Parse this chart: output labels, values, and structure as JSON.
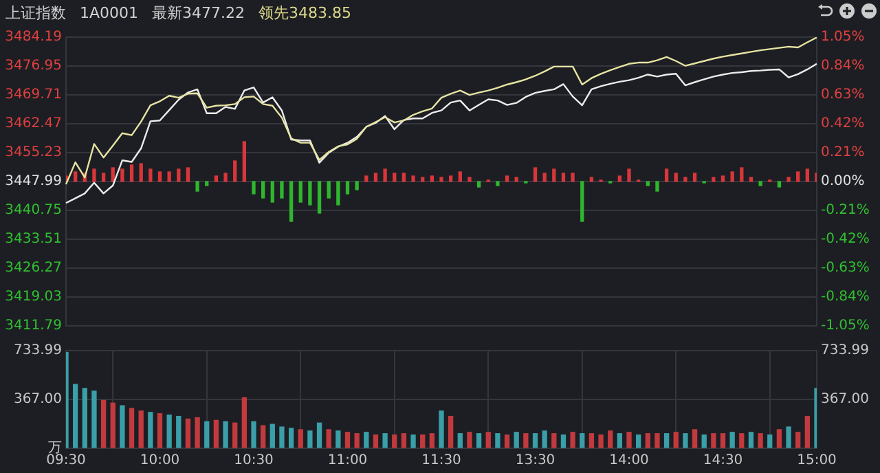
{
  "chart_data": [
    {
      "type": "line",
      "title": "上证指数",
      "annotations": [
        "1A0001",
        "最新3477.22",
        "领先3483.85"
      ],
      "categories": [
        null,
        null,
        null,
        null,
        null,
        null,
        null,
        null,
        null,
        null,
        null,
        null,
        null,
        null,
        null,
        null,
        null,
        null,
        null,
        null,
        null,
        null,
        null,
        null,
        null,
        null,
        null,
        null,
        null,
        null,
        null,
        null,
        null,
        null,
        null,
        null,
        null,
        null,
        null,
        null,
        null,
        null,
        null,
        null,
        null,
        null,
        null,
        null,
        null,
        null,
        null,
        null,
        null,
        null,
        null,
        null,
        null,
        null,
        null,
        null,
        null,
        null,
        null,
        null,
        null,
        null,
        null,
        null,
        null,
        null,
        null,
        null,
        null,
        null,
        null,
        null,
        null,
        null,
        null,
        null,
        null
      ],
      "tick_labels": "y",
      "ylim": [
        3411.79,
        3484.19
      ],
      "yticks": [
        3411.79,
        3419.03,
        3426.27,
        3433.51,
        3440.75,
        3447.99,
        3455.23,
        3462.47,
        3469.71,
        3476.95,
        3484.19
      ],
      "y2lim": [
        -1.05,
        1.05
      ],
      "y2ticks": [
        {
          "value": -1.05,
          "label": "-1.05%"
        },
        {
          "value": -0.84,
          "label": "-0.84%"
        },
        {
          "value": -0.63,
          "label": "-0.63%"
        },
        {
          "value": -0.42,
          "label": "-0.42%"
        },
        {
          "value": -0.21,
          "label": "-0.21%"
        },
        {
          "value": 0,
          "label": "0.00%"
        },
        {
          "value": 0.21,
          "label": "0.21%"
        },
        {
          "value": 0.42,
          "label": "0.42%"
        },
        {
          "value": 0.63,
          "label": "0.63%"
        },
        {
          "value": 0.84,
          "label": "0.84%"
        },
        {
          "value": 1.05,
          "label": "1.05%"
        }
      ],
      "grid": true,
      "series": [
        {
          "type": "bar",
          "axis": "y2",
          "values": [
            0.04,
            0.07,
            0.06,
            0.09,
            0.06,
            0.1,
            0.09,
            0.12,
            0.13,
            0.09,
            0.07,
            0.07,
            0.09,
            0.1,
            -0.07,
            -0.03,
            0.04,
            0.06,
            0.15,
            0.29,
            -0.09,
            -0.12,
            -0.15,
            -0.12,
            -0.29,
            -0.15,
            -0.17,
            -0.23,
            -0.12,
            -0.17,
            -0.09,
            -0.06,
            0.04,
            0.06,
            0.09,
            0.06,
            0.06,
            0.04,
            0.03,
            0.04,
            0.03,
            0.04,
            0.07,
            0.03,
            -0.04,
            0.01,
            -0.03,
            0.04,
            0.03,
            -0.01,
            0.1,
            0.06,
            0.09,
            0.06,
            0.06,
            -0.29,
            0.03,
            0.01,
            -0.01,
            0.04,
            0.09,
            0.01,
            -0.03,
            -0.07,
            0.09,
            0.06,
            0.03,
            0.06,
            -0.01,
            0.03,
            0.04,
            0.07,
            0.1,
            0.03,
            -0.03,
            0.01,
            -0.04,
            0.03,
            0.07,
            0.09,
            0.06
          ],
          "colors": [
            "#d8363a",
            "#d8363a",
            "#d8363a",
            "#d8363a",
            "#d8363a",
            "#d8363a",
            "#d8363a",
            "#d8363a",
            "#d8363a",
            "#d8363a",
            "#d8363a",
            "#d8363a",
            "#d8363a",
            "#d8363a",
            "#2fb62f",
            "#2fb62f",
            "#d8363a",
            "#d8363a",
            "#d8363a",
            "#d8363a",
            "#2fb62f",
            "#2fb62f",
            "#2fb62f",
            "#2fb62f",
            "#2fb62f",
            "#2fb62f",
            "#2fb62f",
            "#2fb62f",
            "#2fb62f",
            "#2fb62f",
            "#2fb62f",
            "#2fb62f",
            "#d8363a",
            "#d8363a",
            "#d8363a",
            "#d8363a",
            "#d8363a",
            "#d8363a",
            "#d8363a",
            "#d8363a",
            "#d8363a",
            "#d8363a",
            "#d8363a",
            "#d8363a",
            "#2fb62f",
            "#d8363a",
            "#2fb62f",
            "#d8363a",
            "#d8363a",
            "#2fb62f",
            "#d8363a",
            "#d8363a",
            "#d8363a",
            "#d8363a",
            "#d8363a",
            "#2fb62f",
            "#d8363a",
            "#d8363a",
            "#2fb62f",
            "#d8363a",
            "#d8363a",
            "#d8363a",
            "#2fb62f",
            "#2fb62f",
            "#d8363a",
            "#d8363a",
            "#d8363a",
            "#d8363a",
            "#2fb62f",
            "#d8363a",
            "#d8363a",
            "#d8363a",
            "#d8363a",
            "#d8363a",
            "#2fb62f",
            "#d8363a",
            "#2fb62f",
            "#d8363a",
            "#d8363a",
            "#d8363a",
            "#d8363a"
          ]
        },
        {
          "color": "#e6e4a2",
          "values": [
            3447.3,
            3452.8,
            3449.0,
            3457.4,
            3454.0,
            3457.0,
            3460.1,
            3459.6,
            3463.0,
            3467.1,
            3468.1,
            3469.5,
            3469.0,
            3470.0,
            3470.1,
            3466.5,
            3467.0,
            3467.1,
            3467.4,
            3469.1,
            3469.3,
            3467.4,
            3467.0,
            3464.0,
            3458.8,
            3457.7,
            3457.7,
            3453.4,
            3455.4,
            3456.8,
            3457.3,
            3458.7,
            3461.7,
            3462.9,
            3464.1,
            3462.8,
            3463.3,
            3464.7,
            3465.6,
            3466.3,
            3469.0,
            3470.0,
            3470.8,
            3469.7,
            3470.3,
            3470.8,
            3471.5,
            3472.3,
            3472.9,
            3473.6,
            3474.5,
            3475.6,
            3476.8,
            3476.8,
            3476.8,
            3472.3,
            3473.9,
            3475.0,
            3475.9,
            3476.7,
            3477.5,
            3477.8,
            3477.8,
            3478.4,
            3479.2,
            3478.2,
            3477.0,
            3477.6,
            3478.2,
            3478.8,
            3479.3,
            3479.7,
            3480.1,
            3480.5,
            3480.9,
            3481.2,
            3481.5,
            3481.8,
            3481.6,
            3482.9,
            3484.1
          ]
        },
        {
          "color": "#ececec",
          "values": [
            3442.6,
            3443.8,
            3445.0,
            3447.7,
            3445.0,
            3447.0,
            3453.3,
            3452.9,
            3456.3,
            3463.1,
            3463.3,
            3465.9,
            3468.5,
            3470.3,
            3471.1,
            3465.1,
            3465.1,
            3466.7,
            3466.2,
            3470.8,
            3471.6,
            3467.8,
            3469.1,
            3465.8,
            3458.5,
            3458.3,
            3458.3,
            3452.7,
            3455.2,
            3456.7,
            3457.7,
            3459.2,
            3461.7,
            3462.7,
            3464.4,
            3461.1,
            3463.4,
            3463.8,
            3463.8,
            3465.2,
            3465.8,
            3467.8,
            3468.3,
            3465.8,
            3467.2,
            3468.6,
            3468.3,
            3467.2,
            3467.7,
            3469.2,
            3470.2,
            3470.7,
            3471.1,
            3472.4,
            3469.3,
            3467.1,
            3471.1,
            3471.9,
            3472.5,
            3473.0,
            3473.4,
            3474.0,
            3474.8,
            3474.3,
            3474.8,
            3475.0,
            3472.1,
            3472.9,
            3473.6,
            3474.3,
            3474.8,
            3475.2,
            3475.4,
            3475.7,
            3475.8,
            3476.0,
            3476.1,
            3474.1,
            3474.9,
            3476.1,
            3477.5
          ]
        }
      ]
    },
    {
      "type": "bar",
      "categories": [
        "09:30",
        null,
        null,
        null,
        null,
        null,
        null,
        null,
        null,
        null,
        "10:00",
        null,
        null,
        null,
        null,
        null,
        null,
        null,
        null,
        null,
        "10:30",
        null,
        null,
        null,
        null,
        null,
        null,
        null,
        null,
        null,
        "11:00",
        null,
        null,
        null,
        null,
        null,
        null,
        null,
        null,
        null,
        "11:30",
        null,
        null,
        null,
        null,
        null,
        null,
        null,
        null,
        null,
        "13:30",
        null,
        null,
        null,
        null,
        null,
        null,
        null,
        null,
        null,
        "14:00",
        null,
        null,
        null,
        null,
        null,
        null,
        null,
        null,
        null,
        "14:30",
        null,
        null,
        null,
        null,
        null,
        null,
        null,
        null,
        null,
        "15:00"
      ],
      "ylim": [
        0,
        733.99
      ],
      "yticks": [
        {
          "value": 0,
          "label": "万"
        },
        {
          "value": 367,
          "label": "367.00"
        },
        733.99
      ],
      "y2lim": [
        0,
        733.99
      ],
      "y2ticks": [
        {
          "value": 367,
          "label": "367.00"
        },
        733.99
      ],
      "grid": true,
      "series": [
        {
          "values": [
            720,
            480,
            450,
            430,
            360,
            340,
            320,
            300,
            280,
            270,
            260,
            250,
            240,
            220,
            230,
            200,
            210,
            200,
            190,
            380,
            200,
            170,
            180,
            160,
            150,
            140,
            130,
            190,
            140,
            130,
            120,
            110,
            120,
            100,
            110,
            100,
            110,
            100,
            100,
            110,
            280,
            240,
            110,
            120,
            110,
            120,
            110,
            100,
            120,
            110,
            110,
            130,
            110,
            100,
            120,
            110,
            110,
            100,
            130,
            110,
            120,
            100,
            110,
            110,
            110,
            120,
            110,
            140,
            100,
            110,
            110,
            120,
            110,
            120,
            110,
            100,
            140,
            160,
            120,
            240,
            450
          ],
          "colors": [
            "#3a9fa8",
            "#3a9fa8",
            "#3a9fa8",
            "#3a9fa8",
            "#c23a3e",
            "#c23a3e",
            "#3a9fa8",
            "#c23a3e",
            "#c23a3e",
            "#3a9fa8",
            "#c23a3e",
            "#3a9fa8",
            "#3a9fa8",
            "#c23a3e",
            "#c23a3e",
            "#3a9fa8",
            "#c23a3e",
            "#3a9fa8",
            "#c23a3e",
            "#c23a3e",
            "#3a9fa8",
            "#c23a3e",
            "#3a9fa8",
            "#3a9fa8",
            "#3a9fa8",
            "#c23a3e",
            "#3a9fa8",
            "#3a9fa8",
            "#c23a3e",
            "#3a9fa8",
            "#c23a3e",
            "#c23a3e",
            "#3a9fa8",
            "#c23a3e",
            "#3a9fa8",
            "#c23a3e",
            "#c23a3e",
            "#3a9fa8",
            "#c23a3e",
            "#c23a3e",
            "#3a9fa8",
            "#c23a3e",
            "#3a9fa8",
            "#c23a3e",
            "#3a9fa8",
            "#c23a3e",
            "#3a9fa8",
            "#c23a3e",
            "#3a9fa8",
            "#c23a3e",
            "#3a9fa8",
            "#3a9fa8",
            "#c23a3e",
            "#3a9fa8",
            "#c23a3e",
            "#3a9fa8",
            "#c23a3e",
            "#c23a3e",
            "#c23a3e",
            "#3a9fa8",
            "#c23a3e",
            "#3a9fa8",
            "#c23a3e",
            "#c23a3e",
            "#3a9fa8",
            "#c23a3e",
            "#3a9fa8",
            "#c23a3e",
            "#3a9fa8",
            "#c23a3e",
            "#c23a3e",
            "#3a9fa8",
            "#c23a3e",
            "#3a9fa8",
            "#c23a3e",
            "#3a9fa8",
            "#c23a3e",
            "#3a9fa8",
            "#c23a3e",
            "#c23a3e",
            "#3a9fa8"
          ]
        }
      ]
    }
  ]
}
